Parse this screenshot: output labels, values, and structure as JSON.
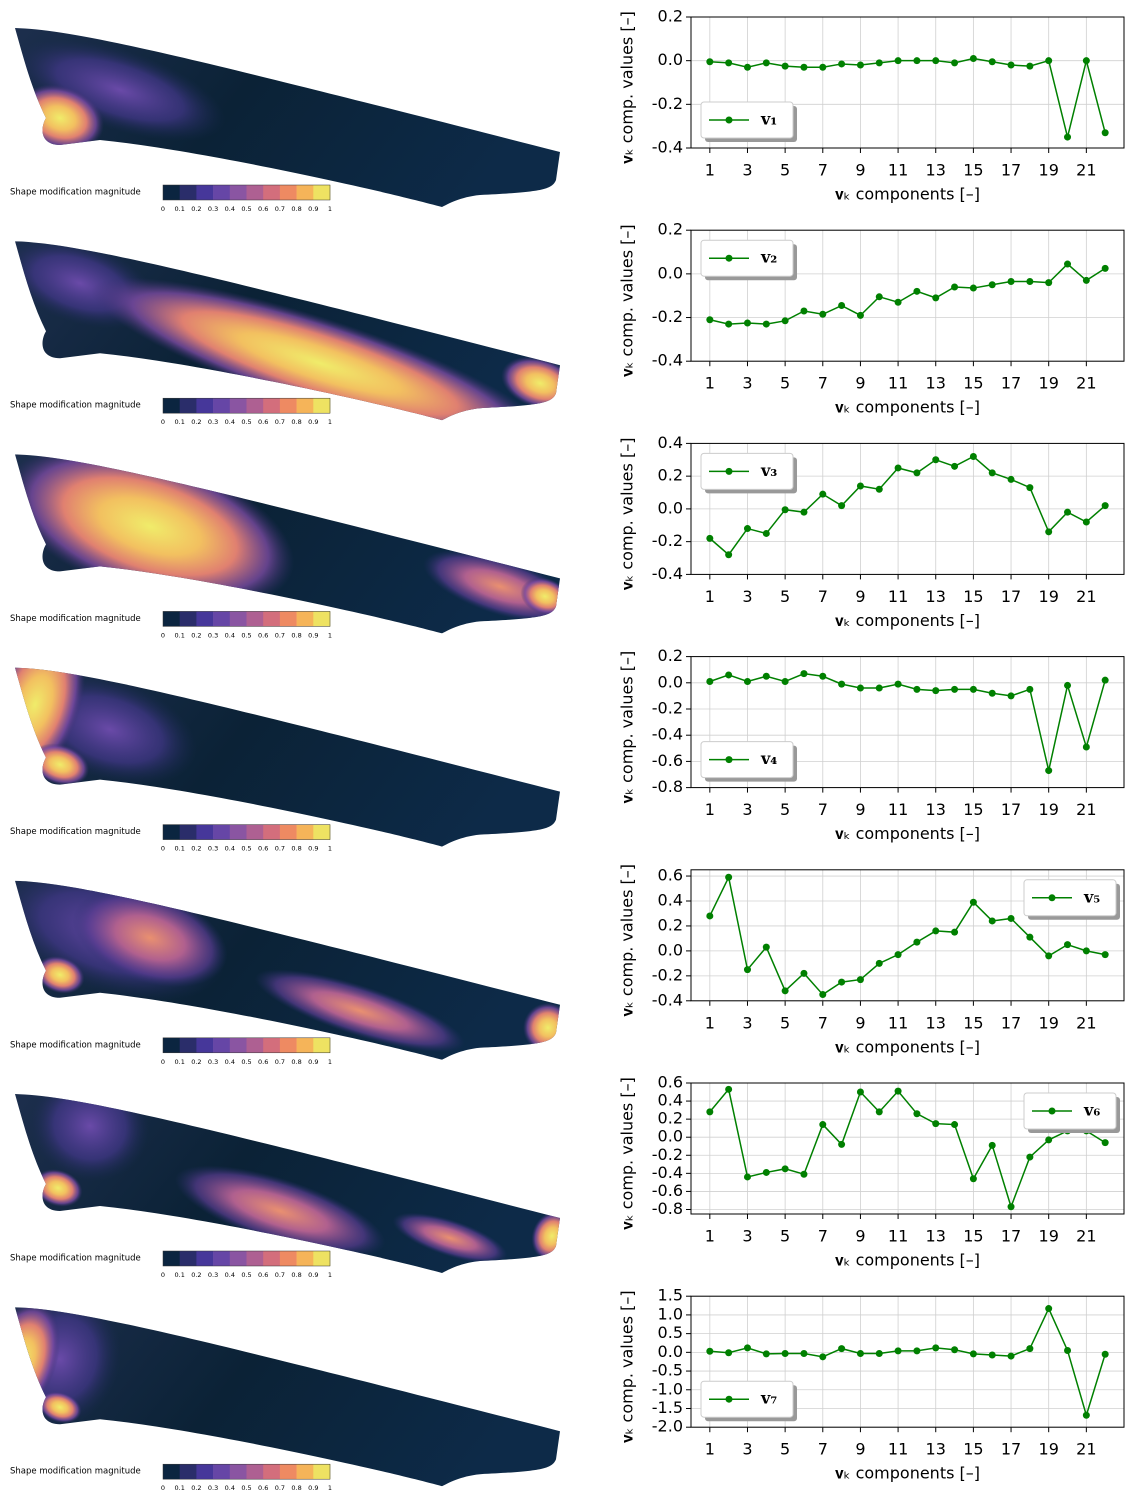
{
  "hull_panels": [
    {
      "colorbar_label": "Shape modification magnitude",
      "colorbar_ticks": [
        0,
        0.1,
        0.2,
        0.3,
        0.4,
        0.5,
        0.6,
        0.7,
        0.8,
        0.9,
        1
      ]
    },
    {
      "colorbar_label": "Shape modification magnitude",
      "colorbar_ticks": [
        0,
        0.1,
        0.2,
        0.3,
        0.4,
        0.5,
        0.6,
        0.7,
        0.8,
        0.9,
        1
      ]
    },
    {
      "colorbar_label": "Shape modification magnitude",
      "colorbar_ticks": [
        0,
        0.1,
        0.2,
        0.3,
        0.4,
        0.5,
        0.6,
        0.7,
        0.8,
        0.9,
        1
      ]
    },
    {
      "colorbar_label": "Shape modification magnitude",
      "colorbar_ticks": [
        0,
        0.1,
        0.2,
        0.3,
        0.4,
        0.5,
        0.6,
        0.7,
        0.8,
        0.9,
        1
      ]
    },
    {
      "colorbar_label": "Shape modification magnitude",
      "colorbar_ticks": [
        0,
        0.1,
        0.2,
        0.3,
        0.4,
        0.5,
        0.6,
        0.7,
        0.8,
        0.9,
        1
      ]
    },
    {
      "colorbar_label": "Shape modification magnitude",
      "colorbar_ticks": [
        0,
        0.1,
        0.2,
        0.3,
        0.4,
        0.5,
        0.6,
        0.7,
        0.8,
        0.9,
        1
      ]
    },
    {
      "colorbar_label": "Shape modification magnitude",
      "colorbar_ticks": [
        0,
        0.1,
        0.2,
        0.3,
        0.4,
        0.5,
        0.6,
        0.7,
        0.8,
        0.9,
        1
      ]
    }
  ],
  "chart_data": [
    {
      "type": "line",
      "ylabel": "𝐯ₖ comp. values [–]",
      "xlabel": "𝐯ₖ components [–]",
      "x": [
        1,
        2,
        3,
        4,
        5,
        6,
        7,
        8,
        9,
        10,
        11,
        12,
        13,
        14,
        15,
        16,
        17,
        18,
        19,
        20,
        21,
        22
      ],
      "series": [
        {
          "name": "𝐯₁",
          "color": "#008000",
          "values": [
            -0.005,
            -0.01,
            -0.03,
            -0.01,
            -0.025,
            -0.03,
            -0.03,
            -0.015,
            -0.02,
            -0.01,
            0.0,
            0.0,
            0.0,
            -0.01,
            0.01,
            -0.005,
            -0.02,
            -0.025,
            0.0,
            -0.35,
            0.0,
            -0.33
          ]
        }
      ],
      "xlim": [
        0,
        23
      ],
      "ylim": [
        -0.4,
        0.2
      ],
      "xticks": [
        1,
        3,
        5,
        7,
        9,
        11,
        13,
        15,
        17,
        19,
        21
      ],
      "yticks": [
        0.2,
        {
          "value": 0,
          "label": "0.0"
        },
        -0.2,
        -0.4
      ],
      "grid": true,
      "legend": "lower left"
    },
    {
      "type": "line",
      "ylabel": "𝐯ₖ comp. values [–]",
      "xlabel": "𝐯ₖ components [–]",
      "x": [
        1,
        2,
        3,
        4,
        5,
        6,
        7,
        8,
        9,
        10,
        11,
        12,
        13,
        14,
        15,
        16,
        17,
        18,
        19,
        20,
        21,
        22
      ],
      "series": [
        {
          "name": "𝐯₂",
          "color": "#008000",
          "values": [
            -0.21,
            -0.23,
            -0.225,
            -0.23,
            -0.215,
            -0.17,
            -0.185,
            -0.145,
            -0.19,
            -0.105,
            -0.13,
            -0.08,
            -0.11,
            -0.06,
            -0.065,
            -0.05,
            -0.035,
            -0.035,
            -0.04,
            0.045,
            -0.03,
            0.025
          ]
        }
      ],
      "xlim": [
        0,
        23
      ],
      "ylim": [
        -0.4,
        0.2
      ],
      "xticks": [
        1,
        3,
        5,
        7,
        9,
        11,
        13,
        15,
        17,
        19,
        21
      ],
      "yticks": [
        0.2,
        {
          "value": 0,
          "label": "0.0"
        },
        -0.2,
        -0.4
      ],
      "grid": true,
      "legend": "upper left"
    },
    {
      "type": "line",
      "ylabel": "𝐯ₖ comp. values [–]",
      "xlabel": "𝐯ₖ components [–]",
      "x": [
        1,
        2,
        3,
        4,
        5,
        6,
        7,
        8,
        9,
        10,
        11,
        12,
        13,
        14,
        15,
        16,
        17,
        18,
        19,
        20,
        21,
        22
      ],
      "series": [
        {
          "name": "𝐯₃",
          "color": "#008000",
          "values": [
            -0.18,
            -0.28,
            -0.12,
            -0.15,
            -0.005,
            -0.02,
            0.09,
            0.02,
            0.14,
            0.12,
            0.25,
            0.22,
            0.3,
            0.26,
            0.32,
            0.22,
            0.18,
            0.13,
            -0.14,
            -0.02,
            -0.08,
            0.02
          ]
        }
      ],
      "xlim": [
        0,
        23
      ],
      "ylim": [
        -0.4,
        0.4
      ],
      "xticks": [
        1,
        3,
        5,
        7,
        9,
        11,
        13,
        15,
        17,
        19,
        21
      ],
      "yticks": [
        0.4,
        0.2,
        {
          "value": 0,
          "label": "0.0"
        },
        -0.2,
        -0.4
      ],
      "grid": true,
      "legend": "upper left"
    },
    {
      "type": "line",
      "ylabel": "𝐯ₖ comp. values [–]",
      "xlabel": "𝐯ₖ components [–]",
      "x": [
        1,
        2,
        3,
        4,
        5,
        6,
        7,
        8,
        9,
        10,
        11,
        12,
        13,
        14,
        15,
        16,
        17,
        18,
        19,
        20,
        21,
        22
      ],
      "series": [
        {
          "name": "𝐯₄",
          "color": "#008000",
          "values": [
            0.01,
            0.06,
            0.01,
            0.05,
            0.01,
            0.07,
            0.05,
            -0.01,
            -0.04,
            -0.04,
            -0.01,
            -0.05,
            -0.06,
            -0.05,
            -0.05,
            -0.08,
            -0.1,
            -0.05,
            -0.67,
            -0.02,
            -0.49,
            0.02
          ]
        }
      ],
      "xlim": [
        0,
        23
      ],
      "ylim": [
        -0.8,
        0.2
      ],
      "xticks": [
        1,
        3,
        5,
        7,
        9,
        11,
        13,
        15,
        17,
        19,
        21
      ],
      "yticks": [
        0.2,
        {
          "value": 0,
          "label": "0.0"
        },
        -0.2,
        -0.4,
        -0.6,
        -0.8
      ],
      "grid": true,
      "legend": "lower left"
    },
    {
      "type": "line",
      "ylabel": "𝐯ₖ comp. values [–]",
      "xlabel": "𝐯ₖ components [–]",
      "x": [
        1,
        2,
        3,
        4,
        5,
        6,
        7,
        8,
        9,
        10,
        11,
        12,
        13,
        14,
        15,
        16,
        17,
        18,
        19,
        20,
        21,
        22
      ],
      "series": [
        {
          "name": "𝐯₅",
          "color": "#008000",
          "values": [
            0.28,
            0.59,
            -0.15,
            0.03,
            -0.32,
            -0.18,
            -0.35,
            -0.25,
            -0.23,
            -0.1,
            -0.03,
            0.07,
            0.16,
            0.15,
            0.39,
            0.24,
            0.26,
            0.11,
            -0.04,
            0.05,
            0.0,
            -0.03
          ]
        }
      ],
      "xlim": [
        0,
        23
      ],
      "ylim": [
        -0.4,
        0.65
      ],
      "xticks": [
        1,
        3,
        5,
        7,
        9,
        11,
        13,
        15,
        17,
        19,
        21
      ],
      "yticks": [
        0.6,
        0.4,
        0.2,
        {
          "value": 0,
          "label": "0.0"
        },
        -0.2,
        -0.4
      ],
      "grid": true,
      "legend": "upper right"
    },
    {
      "type": "line",
      "ylabel": "𝐯ₖ comp. values [–]",
      "xlabel": "𝐯ₖ components [–]",
      "x": [
        1,
        2,
        3,
        4,
        5,
        6,
        7,
        8,
        9,
        10,
        11,
        12,
        13,
        14,
        15,
        16,
        17,
        18,
        19,
        20,
        21,
        22
      ],
      "series": [
        {
          "name": "𝐯₆",
          "color": "#008000",
          "values": [
            0.28,
            0.53,
            -0.44,
            -0.39,
            -0.35,
            -0.41,
            0.14,
            -0.08,
            0.5,
            0.28,
            0.51,
            0.26,
            0.15,
            0.14,
            -0.46,
            -0.09,
            -0.77,
            -0.22,
            -0.03,
            0.07,
            0.07,
            -0.06
          ]
        }
      ],
      "xlim": [
        0,
        23
      ],
      "ylim": [
        -0.85,
        0.6
      ],
      "xticks": [
        1,
        3,
        5,
        7,
        9,
        11,
        13,
        15,
        17,
        19,
        21
      ],
      "yticks": [
        0.6,
        0.4,
        0.2,
        {
          "value": 0,
          "label": "0.0"
        },
        -0.2,
        -0.4,
        -0.6,
        -0.8
      ],
      "grid": true,
      "legend": "upper right"
    },
    {
      "type": "line",
      "ylabel": "𝐯ₖ comp. values [–]",
      "xlabel": "𝐯ₖ components [–]",
      "x": [
        1,
        2,
        3,
        4,
        5,
        6,
        7,
        8,
        9,
        10,
        11,
        12,
        13,
        14,
        15,
        16,
        17,
        18,
        19,
        20,
        21,
        22
      ],
      "series": [
        {
          "name": "𝐯₇",
          "color": "#008000",
          "values": [
            0.03,
            -0.01,
            0.12,
            -0.04,
            -0.03,
            -0.03,
            -0.12,
            0.1,
            -0.03,
            -0.03,
            0.04,
            0.04,
            0.12,
            0.07,
            -0.04,
            -0.07,
            -0.1,
            0.1,
            1.17,
            0.05,
            -1.68,
            -0.05
          ]
        }
      ],
      "xlim": [
        0,
        23
      ],
      "ylim": [
        -2.0,
        1.5
      ],
      "xticks": [
        1,
        3,
        5,
        7,
        9,
        11,
        13,
        15,
        17,
        19,
        21
      ],
      "yticks": [
        1.5,
        {
          "value": 1,
          "label": "1.0"
        },
        0.5,
        {
          "value": 0,
          "label": "0.0"
        },
        -0.5,
        {
          "value": -1,
          "label": "-1.0"
        },
        -1.5,
        {
          "value": -2,
          "label": "-2.0"
        }
      ],
      "grid": true,
      "legend": "lower left"
    }
  ]
}
